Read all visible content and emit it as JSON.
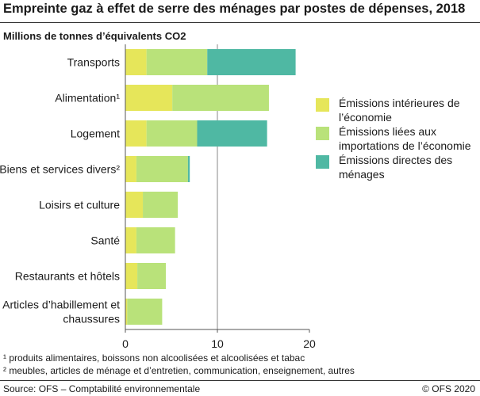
{
  "title": "Empreinte gaz à effet de serre des ménages par postes de dépenses, 2018",
  "unit_label": "Millions de tonnes d’équivalents CO2",
  "footnotes": [
    "¹ produits alimentaires, boissons non alcoolisées et alcoolisées et tabac",
    "² meubles, articles de ménage et d’entretien, communication, enseignement, autres"
  ],
  "source": "Source: OFS – Comptabilité environnementale",
  "copyright": "© OFS 2020",
  "colors": {
    "domestic": "#e6e65a",
    "imports": "#b9e27a",
    "direct": "#4fb8a3",
    "axis": "#555555",
    "gridline": "#888888"
  },
  "chart_data": {
    "type": "bar",
    "orientation": "horizontal",
    "stacked": true,
    "categories": [
      "Transports",
      "Alimentation¹",
      "Logement",
      "Biens et services divers²",
      "Loisirs et culture",
      "Santé",
      "Restaurants et hôtels",
      "Articles d’habillement et chaussures"
    ],
    "category_lines": [
      [
        "Transports"
      ],
      [
        "Alimentation¹"
      ],
      [
        "Logement"
      ],
      [
        "Biens et services divers²"
      ],
      [
        "Loisirs et culture"
      ],
      [
        "Santé"
      ],
      [
        "Restaurants et hôtels"
      ],
      [
        "Articles d’habillement et",
        "chaussures"
      ]
    ],
    "series": [
      {
        "name": "Émissions intérieures de l’économie",
        "name_lines": [
          "Émissions intérieures de",
          "l’économie"
        ],
        "color": "#e6e65a",
        "values": [
          2.3,
          5.1,
          2.3,
          1.2,
          1.9,
          1.2,
          1.3,
          0.2
        ]
      },
      {
        "name": "Émissions liées aux importations de l’économie",
        "name_lines": [
          "Émissions liées aux",
          "importations de l’économie"
        ],
        "color": "#b9e27a",
        "values": [
          6.6,
          10.5,
          5.5,
          5.6,
          3.8,
          4.2,
          3.1,
          3.8
        ]
      },
      {
        "name": "Émissions directes des ménages",
        "name_lines": [
          "Émissions directes des",
          "ménages"
        ],
        "color": "#4fb8a3",
        "values": [
          9.6,
          0,
          7.6,
          0.2,
          0,
          0,
          0,
          0
        ]
      }
    ],
    "xlim": [
      0,
      20
    ],
    "xticks": [
      "0",
      "10",
      "20"
    ],
    "gridlines": [
      10
    ],
    "legend_position": "right"
  }
}
